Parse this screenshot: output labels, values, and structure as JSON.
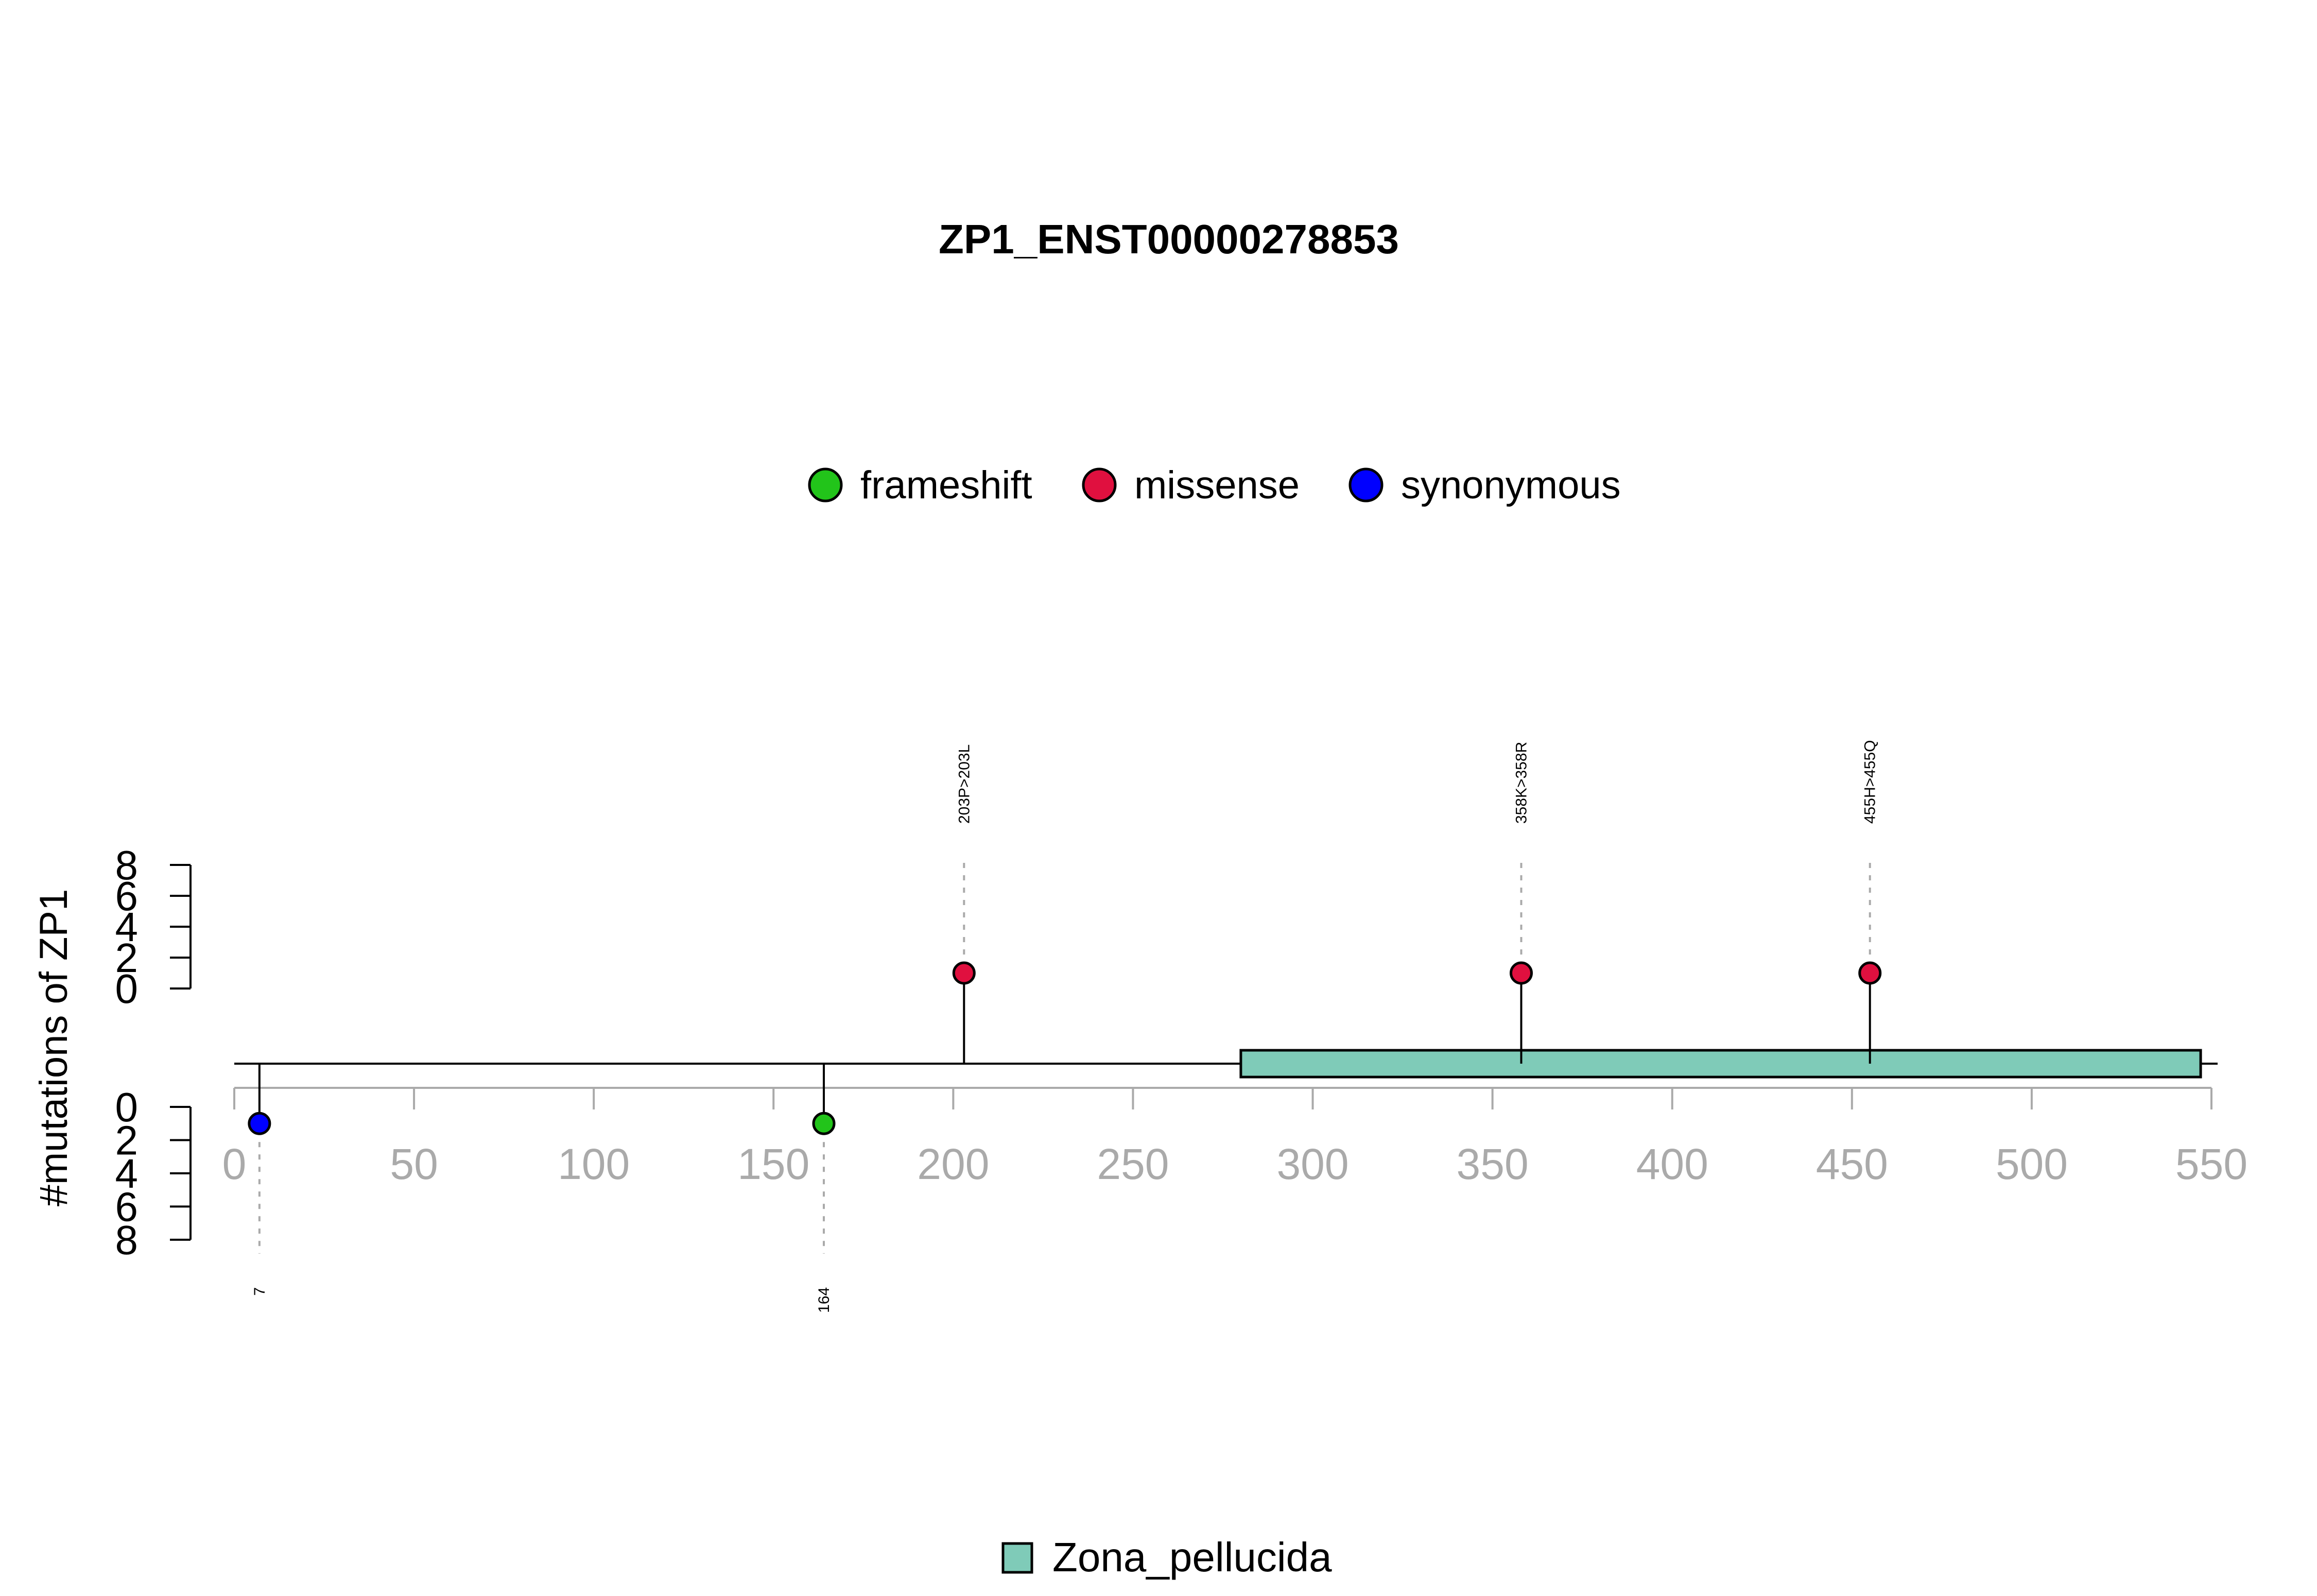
{
  "chart_data": {
    "type": "lollipop",
    "title": "ZP1_ENST00000278853",
    "ylabel": "#mutations of ZP1",
    "xlim": [
      0,
      550
    ],
    "x_ticks": [
      0,
      50,
      100,
      150,
      200,
      250,
      300,
      350,
      400,
      450,
      500,
      550
    ],
    "y_ticks": [
      0,
      2,
      4,
      6,
      8
    ],
    "ylim_upper": [
      0,
      8
    ],
    "ylim_lower": [
      0,
      8
    ],
    "protein_length": 550,
    "legend": [
      {
        "label": "frameshift",
        "color": "#22c41a"
      },
      {
        "label": "missense",
        "color": "#e0103f"
      },
      {
        "label": "synonymous",
        "color": "#0000ff"
      }
    ],
    "mutations": [
      {
        "position": 7,
        "label": "7",
        "type": "synonymous",
        "count": 1,
        "side": "lower"
      },
      {
        "position": 164,
        "label": "164",
        "type": "frameshift",
        "count": 1,
        "side": "lower"
      },
      {
        "position": 203,
        "label": "203P>203L",
        "type": "missense",
        "count": 1,
        "side": "upper"
      },
      {
        "position": 358,
        "label": "358K>358R",
        "type": "missense",
        "count": 1,
        "side": "upper"
      },
      {
        "position": 455,
        "label": "455H>455Q",
        "type": "missense",
        "count": 1,
        "side": "upper"
      }
    ],
    "domains": [
      {
        "name": "Zona_pellucida",
        "start": 280,
        "end": 547,
        "color": "#7fcbb8"
      }
    ]
  }
}
